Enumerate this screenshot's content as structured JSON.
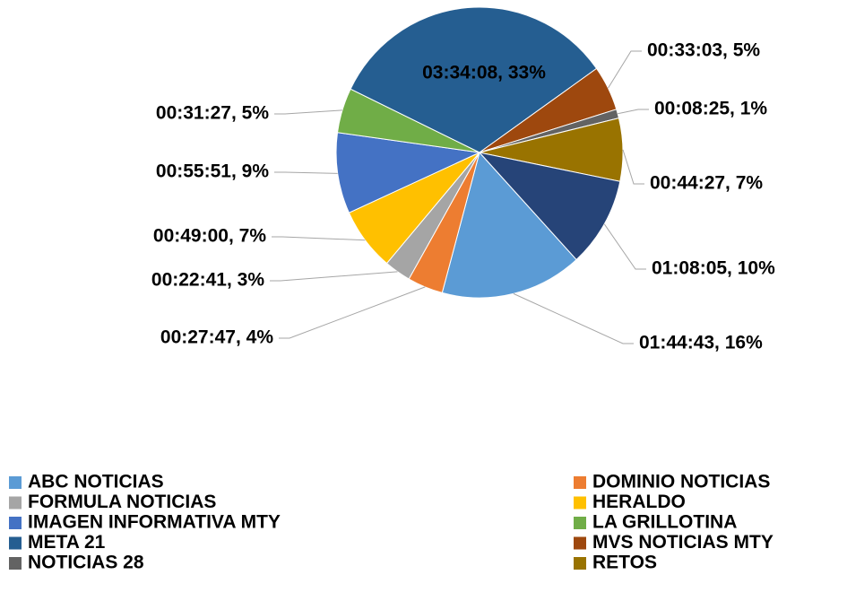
{
  "chart_data": {
    "type": "pie",
    "categories": [
      "ABC NOTICIAS",
      "DOMINIO NOTICIAS",
      "FORMULA NOTICIAS",
      "HERALDO",
      "IMAGEN INFORMATIVA MTY",
      "LA GRILLOTINA",
      "META 21",
      "MVS NOTICIAS MTY",
      "NOTICIAS 28",
      "RETOS",
      null
    ],
    "values": [
      16,
      4,
      3,
      7,
      9,
      5,
      33,
      5,
      1,
      7,
      10
    ],
    "value_labels": [
      "01:44:43, 16%",
      "00:27:47, 4%",
      "00:22:41, 3%",
      "00:49:00, 7%",
      "00:55:51, 9%",
      "00:31:27, 5%",
      "03:34:08, 33%",
      "00:33:03, 5%",
      "00:08:25, 1%",
      "00:44:27, 7%",
      "01:08:05, 10%"
    ],
    "colors": [
      "#5b9bd5",
      "#ed7d31",
      "#a5a5a5",
      "#ffc000",
      "#4472c4",
      "#70ad47",
      "#255e91",
      "#9e480e",
      "#636363",
      "#997300",
      "#264478"
    ],
    "legend": "bottom"
  }
}
